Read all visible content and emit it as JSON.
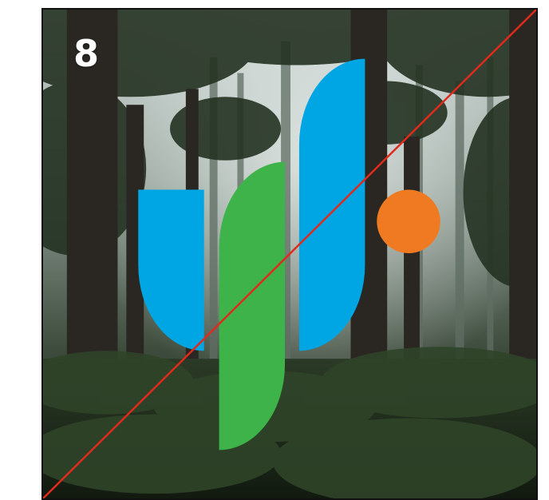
{
  "card": {
    "number_label": "8"
  },
  "colors": {
    "blue": "#00a6e3",
    "green": "#3db34a",
    "orange": "#f07a21",
    "diagonal_line": "#e02a1c",
    "frame": "#111111"
  },
  "logo": {
    "icon": "abstract-logo-mark"
  },
  "background": {
    "description_icon": "forest-photo"
  }
}
